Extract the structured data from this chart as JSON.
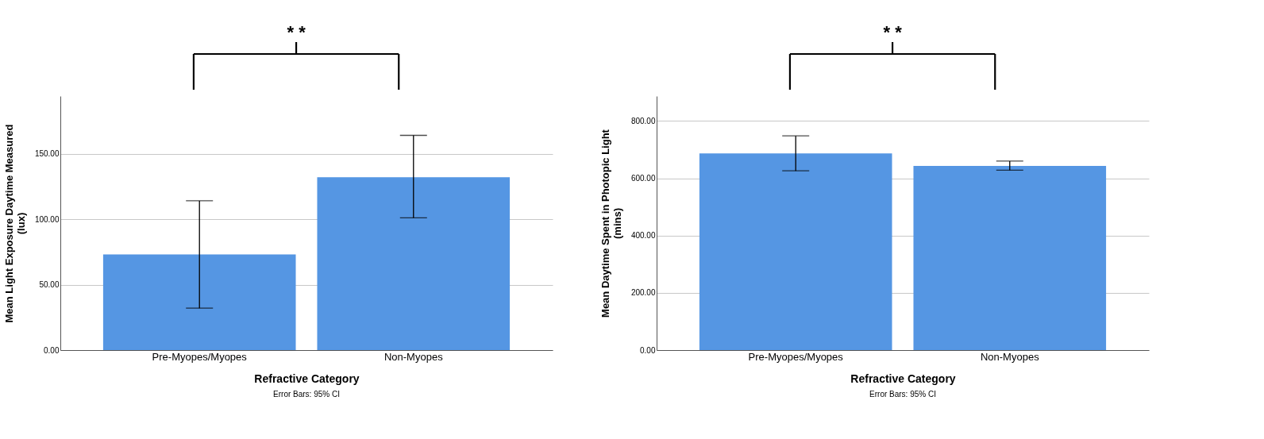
{
  "chart_data": [
    {
      "type": "bar",
      "categories": [
        "Pre-Myopes/Myopes",
        "Non-Myopes"
      ],
      "values": [
        73,
        132
      ],
      "errors": [
        [
          32,
          114
        ],
        [
          101,
          164
        ]
      ],
      "color": "#5596e3",
      "xlabel": "Refractive Category",
      "ylabel": "Mean Light Exposure Daytime Measured (lux)",
      "ylim": [
        0,
        194
      ],
      "yticks": [
        {
          "value": 0,
          "label": "0.00"
        },
        {
          "value": 50,
          "label": "50.00"
        },
        {
          "value": 100,
          "label": "100.00"
        },
        {
          "value": 150,
          "label": "150.00"
        }
      ],
      "grid": "y",
      "annotations": [
        "* *",
        "Error Bars: 95% CI"
      ]
    },
    {
      "type": "bar",
      "categories": [
        "Pre-Myopes/Myopes",
        "Non-Myopes"
      ],
      "values": [
        687,
        643
      ],
      "errors": [
        [
          626,
          748
        ],
        [
          628,
          660
        ]
      ],
      "color": "#5596e3",
      "xlabel": "Refractive Category",
      "ylabel": "Mean Daytime Spent in Photopic Light (mins)",
      "ylim": [
        0,
        887
      ],
      "yticks": [
        {
          "value": 0,
          "label": "0.00"
        },
        {
          "value": 200,
          "label": "200.00"
        },
        {
          "value": 400,
          "label": "400.00"
        },
        {
          "value": 600,
          "label": "600.00"
        },
        {
          "value": 800,
          "label": "800.00"
        }
      ],
      "grid": "y",
      "annotations": [
        "* *",
        "Error Bars: 95% CI"
      ]
    }
  ]
}
